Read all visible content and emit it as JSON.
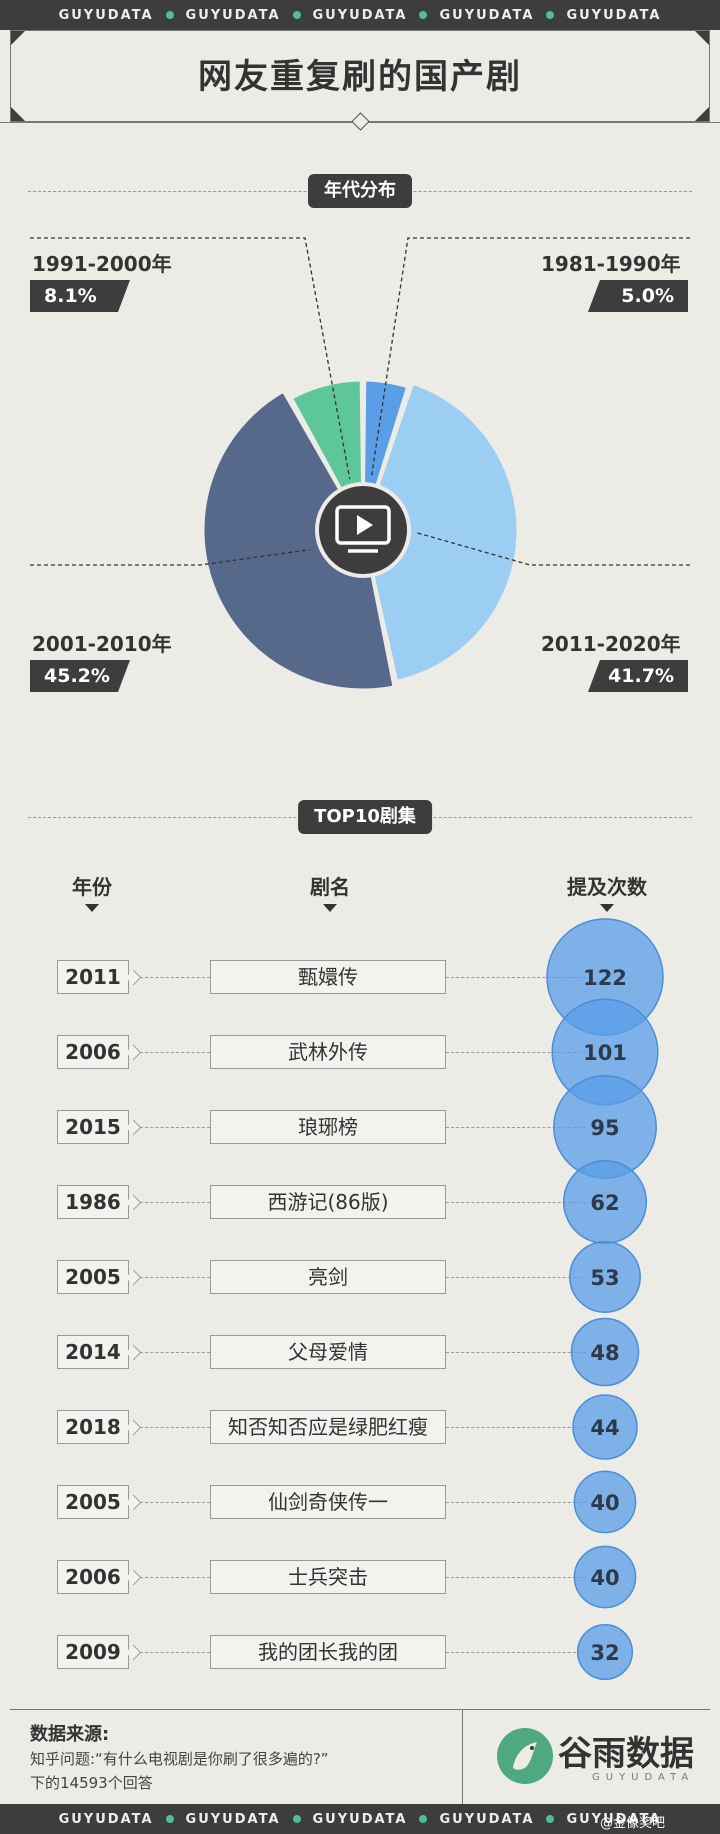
{
  "band_text": "GUYUDATA",
  "title": "网友重复刷的国产剧",
  "section1_label": "年代分布",
  "section2_label": "TOP10剧集",
  "columns": {
    "year": "年份",
    "name": "剧名",
    "count": "提及次数"
  },
  "colors": {
    "dark": "#3c3d3c",
    "slice_1981": "#5b9ee8",
    "slice_1991": "#5ec79a",
    "slice_2001": "#56698a",
    "slice_2011": "#9ccdf2",
    "bubble": "#5a9ee8"
  },
  "chart_data": [
    {
      "type": "pie",
      "title": "年代分布",
      "slices": [
        {
          "label": "1981-1990年",
          "value": 5.0,
          "display": "5.0%"
        },
        {
          "label": "2011-2020年",
          "value": 41.7,
          "display": "41.7%"
        },
        {
          "label": "2001-2010年",
          "value": 45.2,
          "display": "45.2%"
        },
        {
          "label": "1991-2000年",
          "value": 8.1,
          "display": "8.1%"
        }
      ],
      "center_icon": "tv-play-icon"
    },
    {
      "type": "table",
      "title": "TOP10剧集",
      "rows": [
        {
          "year": "2011",
          "name": "甄嬛传",
          "count": 122
        },
        {
          "year": "2006",
          "name": "武林外传",
          "count": 101
        },
        {
          "year": "2015",
          "name": "琅琊榜",
          "count": 95
        },
        {
          "year": "1986",
          "name": "西游记(86版)",
          "count": 62
        },
        {
          "year": "2005",
          "name": "亮剑",
          "count": 53
        },
        {
          "year": "2014",
          "name": "父母爱情",
          "count": 48
        },
        {
          "year": "2018",
          "name": "知否知否应是绿肥红瘦",
          "count": 44
        },
        {
          "year": "2005",
          "name": "仙剑奇侠传一",
          "count": 40
        },
        {
          "year": "2006",
          "name": "士兵突击",
          "count": 40
        },
        {
          "year": "2009",
          "name": "我的团长我的团",
          "count": 32
        }
      ]
    }
  ],
  "footer": {
    "source_head": "数据来源:",
    "source_line1": "知乎问题:“有什么电视剧是你刷了很多遍的?”",
    "source_line2": "下的14593个回答",
    "logo_name": "谷雨数据",
    "logo_sub": "GUYUDATA",
    "watermark": "@金像奖吧"
  }
}
